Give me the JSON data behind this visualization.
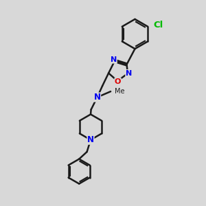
{
  "background_color": "#dcdcdc",
  "bond_color": "#1a1a1a",
  "bond_width": 1.8,
  "atom_colors": {
    "N": "#0000ee",
    "O": "#dd0000",
    "Cl": "#00bb00",
    "C": "#1a1a1a"
  },
  "font_size_atom": 8.5,
  "fig_bg": "#d8d8d8"
}
